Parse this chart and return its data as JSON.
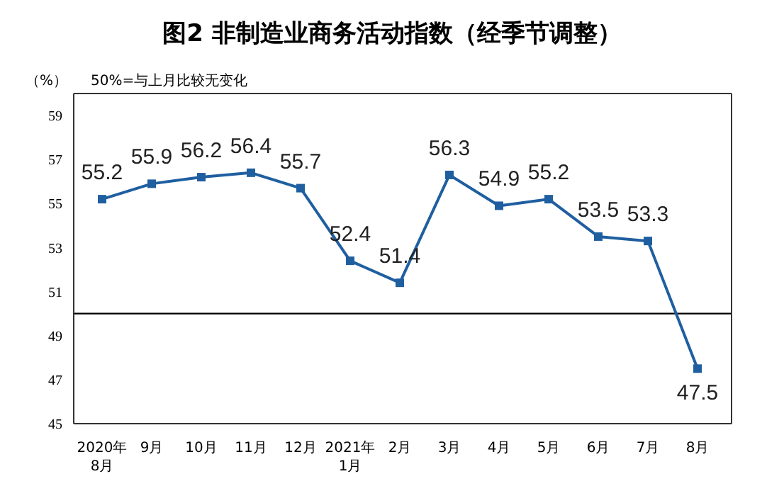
{
  "chart_data": {
    "type": "line",
    "title": "图2 非制造业商务活动指数（经季节调整）",
    "ylabel": "（%）",
    "annotations": [
      "50%=与上月比较无变化"
    ],
    "categories": [
      "2020年\n8月",
      "9月",
      "10月",
      "11月",
      "12月",
      "2021年\n1月",
      "2月",
      "3月",
      "4月",
      "5月",
      "6月",
      "7月",
      "8月"
    ],
    "series": [
      {
        "color": "#1f5fa0",
        "values": [
          55.2,
          55.9,
          56.2,
          56.4,
          55.7,
          52.4,
          51.4,
          56.3,
          54.9,
          55.2,
          53.5,
          53.3,
          47.5
        ]
      }
    ],
    "ylim": [
      45,
      60
    ],
    "yticks": [
      45,
      47,
      49,
      51,
      53,
      55,
      57,
      59
    ],
    "ref_lines": [
      {
        "axis": "y",
        "value": 50,
        "color": "#000000"
      }
    ],
    "data_labels": true,
    "marker": "square",
    "line_style": "solid",
    "grid": false,
    "legend": false
  }
}
